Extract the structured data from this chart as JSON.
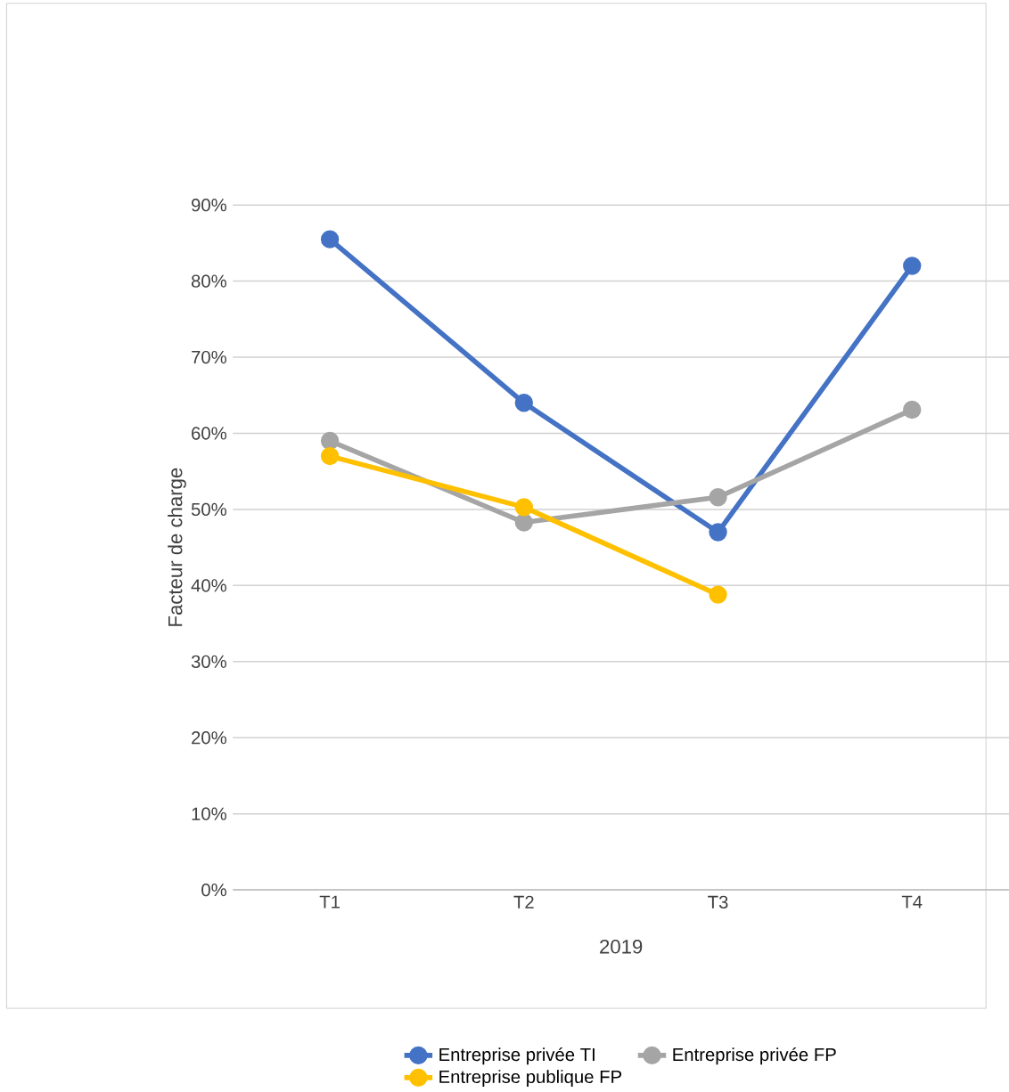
{
  "chart_data": {
    "type": "line",
    "ylabel": "Facteur de charge",
    "xlabel": "2019",
    "categories": [
      "T1",
      "T2",
      "T3",
      "T4"
    ],
    "series": [
      {
        "name": "Entreprise privée TI",
        "color": "#4472c4",
        "values": [
          85.5,
          64,
          47,
          82
        ]
      },
      {
        "name": "Entreprise privée FP",
        "color": "#a5a5a5",
        "values": [
          59,
          48.3,
          51.6,
          63.1
        ]
      },
      {
        "name": "Entreprise publique FP",
        "color": "#ffc000",
        "values": [
          57,
          50.3,
          38.8,
          null
        ]
      }
    ],
    "ylim": [
      0,
      90
    ],
    "yticks": [
      {
        "value": 0,
        "label": "0%"
      },
      {
        "value": 10,
        "label": "10%"
      },
      {
        "value": 20,
        "label": "20%"
      },
      {
        "value": 30,
        "label": "30%"
      },
      {
        "value": 40,
        "label": "40%"
      },
      {
        "value": 50,
        "label": "50%"
      },
      {
        "value": 60,
        "label": "60%"
      },
      {
        "value": 70,
        "label": "70%"
      },
      {
        "value": 80,
        "label": "80%"
      },
      {
        "value": 90,
        "label": "90%"
      }
    ],
    "grid": "y",
    "legend": "bottom",
    "marker": "circle",
    "line_style": "solid"
  }
}
